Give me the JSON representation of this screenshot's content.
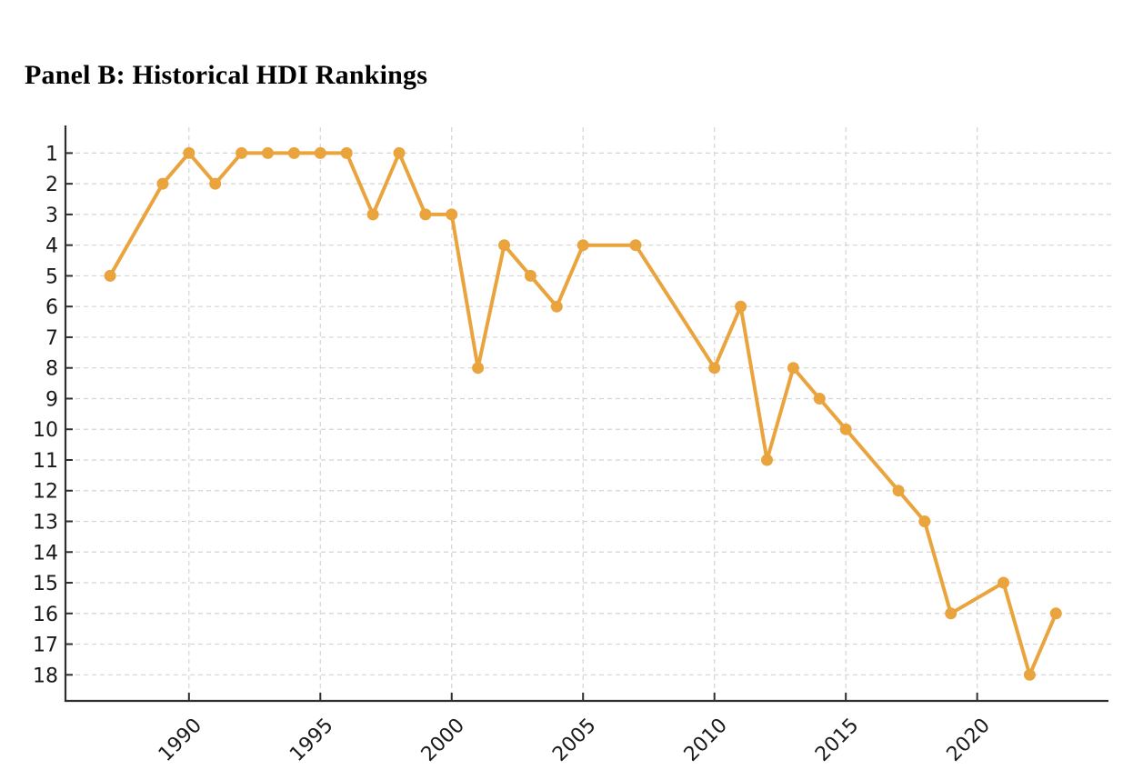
{
  "title": "Panel B: Historical HDI Rankings",
  "chart_data": {
    "type": "line",
    "title": "Panel B: Historical HDI Rankings",
    "xlabel": "",
    "ylabel": "",
    "legend": "none",
    "grid": "dashed both axes",
    "y_axis_inverted": true,
    "x_range": [
      1985.3,
      2025.1
    ],
    "y_range": [
      0.1,
      18.85
    ],
    "x_ticks": [
      1990,
      1995,
      2000,
      2005,
      2010,
      2015,
      2020
    ],
    "y_ticks": [
      1,
      2,
      3,
      4,
      5,
      6,
      7,
      8,
      9,
      10,
      11,
      12,
      13,
      14,
      15,
      16,
      17,
      18
    ],
    "series": [
      {
        "name": "HDI ranking",
        "marker": "circle",
        "color": "#EAA43D",
        "points": [
          [
            1987,
            5
          ],
          [
            1989,
            2
          ],
          [
            1990,
            1
          ],
          [
            1991,
            2
          ],
          [
            1992,
            1
          ],
          [
            1993,
            1
          ],
          [
            1994,
            1
          ],
          [
            1995,
            1
          ],
          [
            1996,
            1
          ],
          [
            1997,
            3
          ],
          [
            1998,
            1
          ],
          [
            1999,
            3
          ],
          [
            2000,
            3
          ],
          [
            2001,
            8
          ],
          [
            2002,
            4
          ],
          [
            2003,
            5
          ],
          [
            2004,
            6
          ],
          [
            2005,
            4
          ],
          [
            2007,
            4
          ],
          [
            2010,
            8
          ],
          [
            2011,
            6
          ],
          [
            2012,
            11
          ],
          [
            2013,
            8
          ],
          [
            2014,
            9
          ],
          [
            2015,
            10
          ],
          [
            2017,
            12
          ],
          [
            2018,
            13
          ],
          [
            2019,
            16
          ],
          [
            2021,
            15
          ],
          [
            2022,
            18
          ],
          [
            2023,
            16
          ]
        ]
      }
    ],
    "colors": {
      "line": "#EAA43D",
      "marker": "#EAA43D",
      "grid": "#d4d4d4",
      "axis": "#2e2e2e",
      "tick_label": "#1a1a1a",
      "title": "#000000",
      "background": "#ffffff"
    }
  }
}
